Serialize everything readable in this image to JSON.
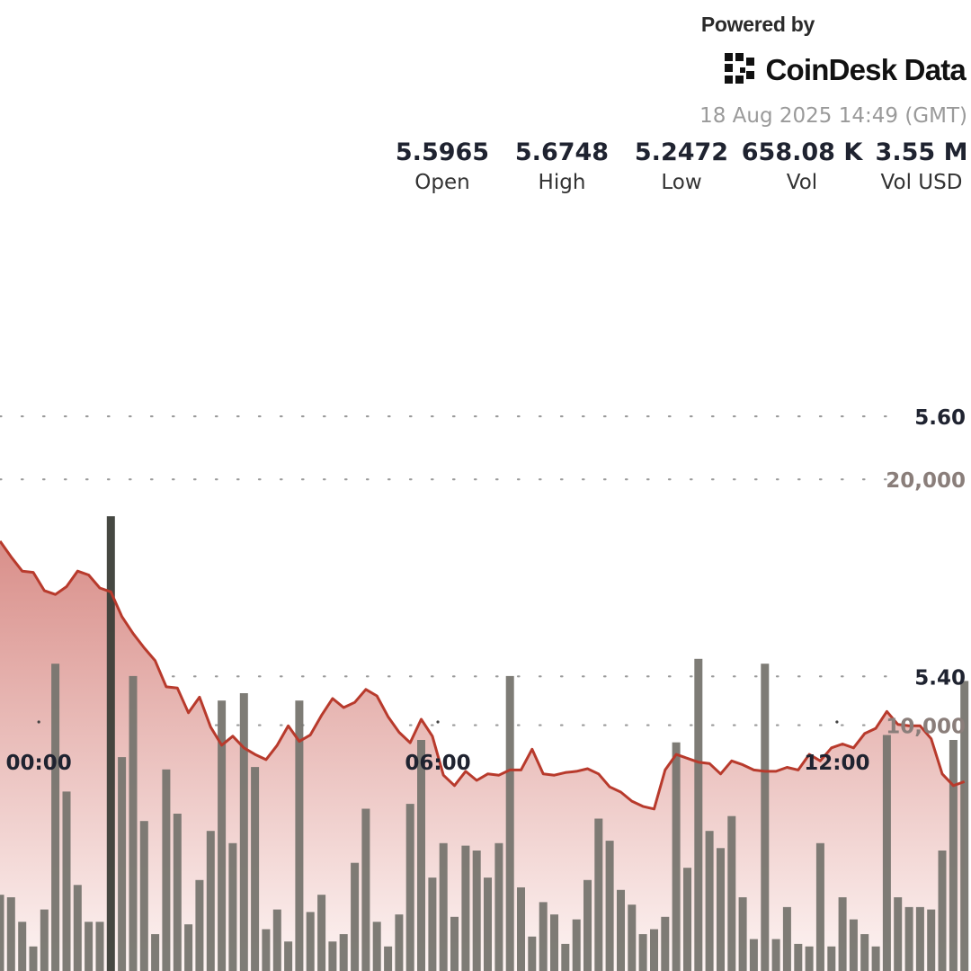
{
  "header": {
    "powered_by": "Powered by",
    "brand_name": "CoinDesk Data",
    "timestamp": "18 Aug 2025 14:49 (GMT)"
  },
  "stats": [
    {
      "value": "5.5965",
      "label": "Open"
    },
    {
      "value": "5.6748",
      "label": "High"
    },
    {
      "value": "5.2472",
      "label": "Low"
    },
    {
      "value": "658.08 K",
      "label": "Vol"
    },
    {
      "value": "3.55 M",
      "label": "Vol USD"
    }
  ],
  "colors": {
    "price_line": "#b83a2c",
    "area_top": "#d98f8a",
    "area_bottom": "#fdf4f3",
    "volume_bar": "#77756f",
    "volume_bar_highlight": "#3c3e38",
    "text_dark": "#1f2330",
    "text_muted": "#9a9a9a"
  },
  "chart_data": {
    "type": "line",
    "title": "",
    "xlabel": "",
    "ylabel": "",
    "price_axis": {
      "ticks": [
        "5.60",
        "5.40"
      ],
      "tick_values": [
        5.6,
        5.4
      ],
      "ylim": [
        5.1734,
        5.6851
      ]
    },
    "volume_axis": {
      "ticks": [
        "20,000",
        "10,000"
      ],
      "tick_values": [
        20000,
        10000
      ],
      "ylim": [
        0,
        39500
      ]
    },
    "time_axis": {
      "ticks": [
        "00:00",
        "06:00",
        "12:00"
      ],
      "tick_index": [
        3.5,
        39.5,
        75.5
      ],
      "points_per_hour": 6
    },
    "grid": true,
    "legend": "none",
    "series": [
      {
        "kind": "price",
        "x_index": [
          0,
          1,
          2,
          3,
          4,
          5,
          6,
          7,
          8,
          9,
          10,
          11,
          12,
          13,
          14,
          15,
          16,
          17,
          18,
          19,
          20,
          21,
          22,
          23,
          24,
          25,
          26,
          27,
          28,
          29,
          30,
          31,
          32,
          33,
          34,
          35,
          36,
          37,
          38,
          39,
          40,
          41,
          42,
          43,
          44,
          45,
          46,
          47,
          48,
          49,
          50,
          51,
          52,
          53,
          54,
          55,
          56,
          57,
          58,
          59,
          60,
          61,
          62,
          63,
          64,
          65,
          66,
          67,
          68,
          69,
          70,
          71,
          72,
          73,
          74,
          75,
          76,
          77,
          78,
          79,
          80,
          81,
          82,
          83,
          84,
          85,
          86,
          87
        ],
        "values": [
          5.504,
          5.492,
          5.481,
          5.48,
          5.466,
          5.463,
          5.469,
          5.481,
          5.478,
          5.468,
          5.465,
          5.446,
          5.433,
          5.422,
          5.412,
          5.392,
          5.391,
          5.372,
          5.384,
          5.361,
          5.347,
          5.354,
          5.345,
          5.34,
          5.336,
          5.347,
          5.362,
          5.35,
          5.355,
          5.37,
          5.383,
          5.376,
          5.38,
          5.39,
          5.385,
          5.369,
          5.357,
          5.349,
          5.367,
          5.354,
          5.324,
          5.316,
          5.327,
          5.32,
          5.325,
          5.324,
          5.328,
          5.328,
          5.344,
          5.325,
          5.324,
          5.326,
          5.327,
          5.329,
          5.325,
          5.315,
          5.311,
          5.304,
          5.3,
          5.298,
          5.328,
          5.34,
          5.337,
          5.334,
          5.333,
          5.325,
          5.335,
          5.332,
          5.328,
          5.327,
          5.327,
          5.33,
          5.328,
          5.34,
          5.335,
          5.345,
          5.348,
          5.345,
          5.356,
          5.36,
          5.373,
          5.363,
          5.362,
          5.362,
          5.352,
          5.325,
          5.316,
          5.319
        ]
      },
      {
        "kind": "volume",
        "x_index": [
          0,
          1,
          2,
          3,
          4,
          5,
          6,
          7,
          8,
          9,
          10,
          11,
          12,
          13,
          14,
          15,
          16,
          17,
          18,
          19,
          20,
          21,
          22,
          23,
          24,
          25,
          26,
          27,
          28,
          29,
          30,
          31,
          32,
          33,
          34,
          35,
          36,
          37,
          38,
          39,
          40,
          41,
          42,
          43,
          44,
          45,
          46,
          47,
          48,
          49,
          50,
          51,
          52,
          53,
          54,
          55,
          56,
          57,
          58,
          59,
          60,
          61,
          62,
          63,
          64,
          65,
          66,
          67,
          68,
          69,
          70,
          71,
          72,
          73,
          74,
          75,
          76,
          77,
          78,
          79,
          80,
          81,
          82,
          83,
          84,
          85,
          86,
          87
        ],
        "values": [
          3100,
          3000,
          2000,
          1000,
          2500,
          12500,
          7300,
          3500,
          2000,
          2000,
          18500,
          8700,
          12000,
          6100,
          1500,
          8200,
          6400,
          1900,
          3700,
          5700,
          11000,
          5200,
          11300,
          8300,
          1700,
          2500,
          1200,
          11000,
          2400,
          3100,
          1200,
          1500,
          4400,
          6600,
          2000,
          1000,
          2300,
          6800,
          9400,
          3800,
          5200,
          2200,
          5100,
          4900,
          3800,
          5200,
          12000,
          3400,
          1400,
          2800,
          2300,
          1100,
          2100,
          3700,
          6200,
          5300,
          3300,
          2700,
          1500,
          1700,
          2200,
          9300,
          4200,
          12700,
          5700,
          5000,
          6300,
          3000,
          1300,
          12500,
          1300,
          2600,
          1100,
          1000,
          5200,
          1000,
          3000,
          2100,
          1500,
          1000,
          9600,
          3000,
          2600,
          2600,
          2500,
          4900,
          9400,
          11800
        ]
      }
    ]
  }
}
